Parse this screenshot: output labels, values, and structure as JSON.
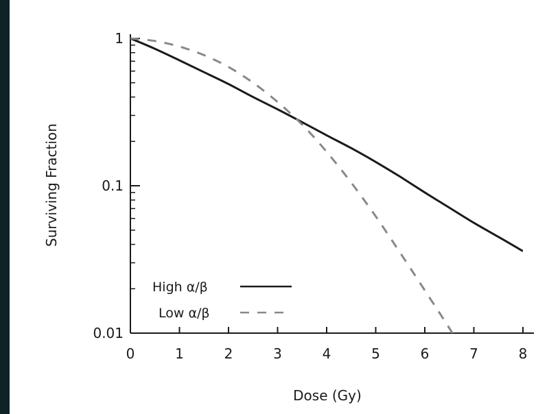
{
  "chart_data": {
    "type": "line",
    "xlabel": "Dose (Gy)",
    "ylabel": "Surviving Fraction",
    "xlim": [
      0,
      8
    ],
    "ylim": [
      0.01,
      1
    ],
    "y_scale": "log",
    "grid": false,
    "legend_position": "bottom-left",
    "x_ticks": [
      "0",
      "1",
      "2",
      "3",
      "4",
      "5",
      "6",
      "7",
      "8"
    ],
    "y_ticks": [
      {
        "value": 1,
        "label": "1"
      },
      {
        "value": 0.1,
        "label": "0.1"
      },
      {
        "value": 0.01,
        "label": "0.01"
      }
    ],
    "series": [
      {
        "name": "High α/β",
        "style": "solid",
        "color": "#1a1a1a",
        "x": [
          0,
          0.5,
          1,
          1.5,
          2,
          2.5,
          3,
          3.5,
          4,
          4.5,
          5,
          5.5,
          6,
          6.5,
          7,
          7.5,
          8
        ],
        "y": [
          1.0,
          0.85,
          0.71,
          0.59,
          0.49,
          0.4,
          0.33,
          0.27,
          0.22,
          0.18,
          0.145,
          0.115,
          0.09,
          0.071,
          0.056,
          0.045,
          0.036
        ]
      },
      {
        "name": "Low α/β",
        "style": "dashed",
        "color": "#888888",
        "x": [
          0,
          0.5,
          1,
          1.5,
          2,
          2.5,
          3,
          3.5,
          4,
          4.5,
          5,
          5.5,
          6,
          6.5,
          7
        ],
        "y": [
          1.0,
          0.96,
          0.88,
          0.77,
          0.64,
          0.5,
          0.37,
          0.26,
          0.17,
          0.105,
          0.062,
          0.035,
          0.0195,
          0.0108,
          0.0058
        ]
      }
    ]
  }
}
